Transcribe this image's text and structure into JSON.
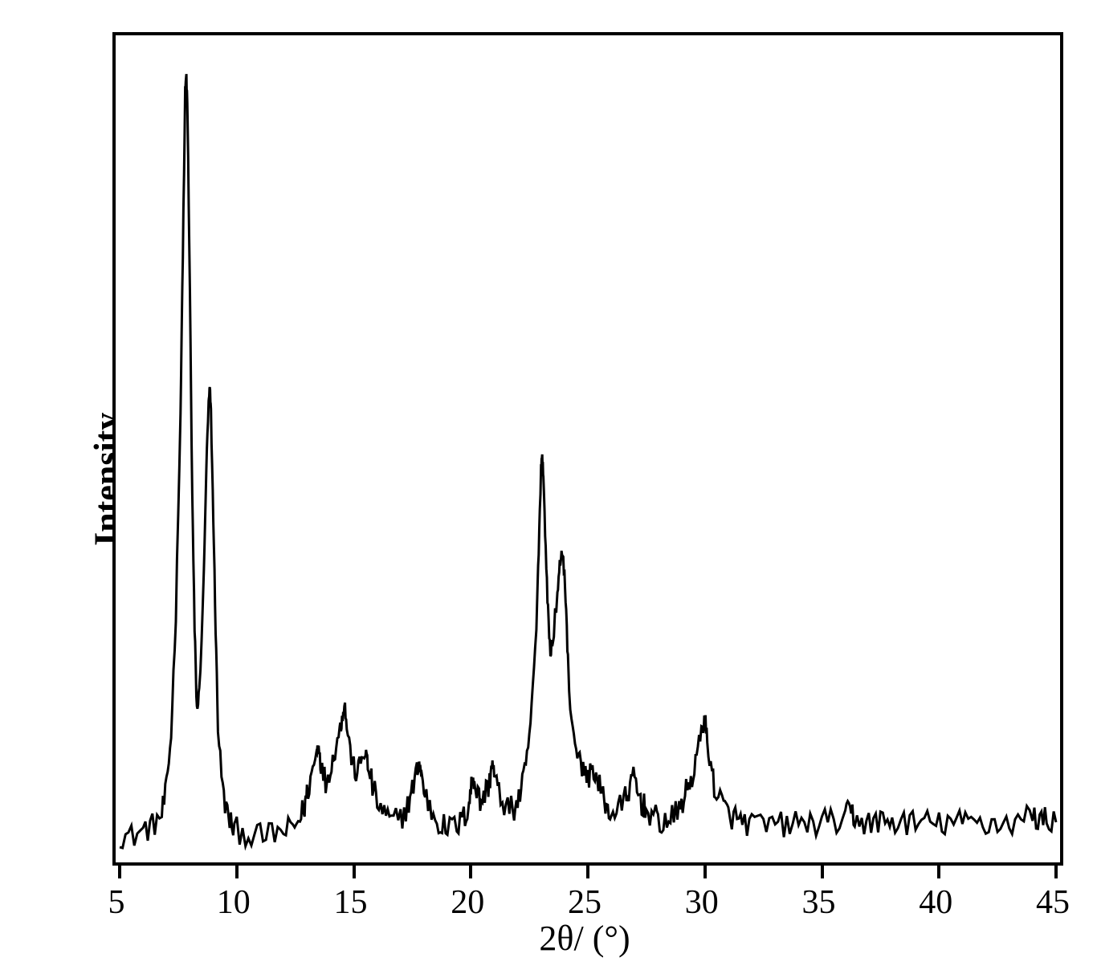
{
  "chart": {
    "type": "line",
    "ylabel": "Intensity",
    "xlabel_html": "2θ/ (°)",
    "xlim": [
      5,
      45
    ],
    "ylim": [
      0,
      100
    ],
    "xtick_labels": [
      "5",
      "10",
      "15",
      "20",
      "25",
      "30",
      "35",
      "40",
      "45"
    ],
    "xtick_positions": [
      5,
      10,
      15,
      20,
      25,
      30,
      35,
      40,
      45
    ],
    "line_color": "#000000",
    "line_width": 3,
    "border_color": "#000000",
    "border_width": 4,
    "background_color": "#ffffff",
    "text_color": "#000000",
    "ylabel_fontsize": 44,
    "xlabel_fontsize": 44,
    "tick_fontsize": 42,
    "data": [
      {
        "x": 5.0,
        "y": 2.5
      },
      {
        "x": 5.5,
        "y": 2.2
      },
      {
        "x": 6.0,
        "y": 3.0
      },
      {
        "x": 6.4,
        "y": 3.5
      },
      {
        "x": 6.8,
        "y": 5.0
      },
      {
        "x": 7.0,
        "y": 8.0
      },
      {
        "x": 7.2,
        "y": 15.0
      },
      {
        "x": 7.4,
        "y": 30.0
      },
      {
        "x": 7.6,
        "y": 55.0
      },
      {
        "x": 7.7,
        "y": 75.0
      },
      {
        "x": 7.8,
        "y": 95.0
      },
      {
        "x": 7.85,
        "y": 97.0
      },
      {
        "x": 7.9,
        "y": 92.0
      },
      {
        "x": 8.0,
        "y": 70.0
      },
      {
        "x": 8.1,
        "y": 45.0
      },
      {
        "x": 8.2,
        "y": 28.0
      },
      {
        "x": 8.3,
        "y": 18.0
      },
      {
        "x": 8.4,
        "y": 20.0
      },
      {
        "x": 8.6,
        "y": 35.0
      },
      {
        "x": 8.7,
        "y": 48.0
      },
      {
        "x": 8.8,
        "y": 56.0
      },
      {
        "x": 8.85,
        "y": 58.0
      },
      {
        "x": 8.9,
        "y": 55.0
      },
      {
        "x": 9.0,
        "y": 42.0
      },
      {
        "x": 9.1,
        "y": 28.0
      },
      {
        "x": 9.2,
        "y": 16.0
      },
      {
        "x": 9.4,
        "y": 8.0
      },
      {
        "x": 9.6,
        "y": 5.0
      },
      {
        "x": 9.8,
        "y": 3.5
      },
      {
        "x": 10.0,
        "y": 3.0
      },
      {
        "x": 10.5,
        "y": 2.5
      },
      {
        "x": 11.0,
        "y": 2.2
      },
      {
        "x": 11.5,
        "y": 2.5
      },
      {
        "x": 12.0,
        "y": 2.8
      },
      {
        "x": 12.4,
        "y": 3.2
      },
      {
        "x": 12.7,
        "y": 4.5
      },
      {
        "x": 12.9,
        "y": 6.0
      },
      {
        "x": 13.0,
        "y": 7.5
      },
      {
        "x": 13.2,
        "y": 10.0
      },
      {
        "x": 13.4,
        "y": 12.5
      },
      {
        "x": 13.5,
        "y": 14.0
      },
      {
        "x": 13.6,
        "y": 11.0
      },
      {
        "x": 13.8,
        "y": 9.0
      },
      {
        "x": 14.0,
        "y": 10.5
      },
      {
        "x": 14.2,
        "y": 13.0
      },
      {
        "x": 14.4,
        "y": 15.5
      },
      {
        "x": 14.5,
        "y": 17.0
      },
      {
        "x": 14.6,
        "y": 19.0
      },
      {
        "x": 14.7,
        "y": 16.0
      },
      {
        "x": 14.9,
        "y": 12.0
      },
      {
        "x": 15.1,
        "y": 10.0
      },
      {
        "x": 15.3,
        "y": 11.5
      },
      {
        "x": 15.5,
        "y": 13.0
      },
      {
        "x": 15.6,
        "y": 11.0
      },
      {
        "x": 15.8,
        "y": 8.5
      },
      {
        "x": 16.0,
        "y": 6.5
      },
      {
        "x": 16.3,
        "y": 5.0
      },
      {
        "x": 16.6,
        "y": 4.0
      },
      {
        "x": 17.0,
        "y": 4.5
      },
      {
        "x": 17.3,
        "y": 6.0
      },
      {
        "x": 17.5,
        "y": 8.0
      },
      {
        "x": 17.7,
        "y": 10.5
      },
      {
        "x": 17.8,
        "y": 11.5
      },
      {
        "x": 17.9,
        "y": 9.5
      },
      {
        "x": 18.1,
        "y": 7.0
      },
      {
        "x": 18.4,
        "y": 5.0
      },
      {
        "x": 18.7,
        "y": 3.8
      },
      {
        "x": 19.0,
        "y": 3.2
      },
      {
        "x": 19.4,
        "y": 3.5
      },
      {
        "x": 19.7,
        "y": 4.5
      },
      {
        "x": 19.9,
        "y": 6.0
      },
      {
        "x": 20.0,
        "y": 8.0
      },
      {
        "x": 20.1,
        "y": 10.0
      },
      {
        "x": 20.2,
        "y": 8.5
      },
      {
        "x": 20.4,
        "y": 6.5
      },
      {
        "x": 20.6,
        "y": 7.5
      },
      {
        "x": 20.8,
        "y": 9.0
      },
      {
        "x": 20.9,
        "y": 11.5
      },
      {
        "x": 21.0,
        "y": 10.0
      },
      {
        "x": 21.2,
        "y": 7.5
      },
      {
        "x": 21.5,
        "y": 6.0
      },
      {
        "x": 21.8,
        "y": 5.5
      },
      {
        "x": 22.0,
        "y": 6.5
      },
      {
        "x": 22.2,
        "y": 8.5
      },
      {
        "x": 22.4,
        "y": 12.0
      },
      {
        "x": 22.6,
        "y": 18.0
      },
      {
        "x": 22.8,
        "y": 28.0
      },
      {
        "x": 22.9,
        "y": 38.0
      },
      {
        "x": 23.0,
        "y": 48.0
      },
      {
        "x": 23.05,
        "y": 50.0
      },
      {
        "x": 23.1,
        "y": 47.0
      },
      {
        "x": 23.2,
        "y": 38.0
      },
      {
        "x": 23.3,
        "y": 30.0
      },
      {
        "x": 23.4,
        "y": 25.0
      },
      {
        "x": 23.5,
        "y": 27.0
      },
      {
        "x": 23.7,
        "y": 32.0
      },
      {
        "x": 23.8,
        "y": 36.0
      },
      {
        "x": 23.9,
        "y": 38.0
      },
      {
        "x": 24.0,
        "y": 35.0
      },
      {
        "x": 24.1,
        "y": 28.0
      },
      {
        "x": 24.2,
        "y": 20.0
      },
      {
        "x": 24.4,
        "y": 15.0
      },
      {
        "x": 24.6,
        "y": 12.0
      },
      {
        "x": 24.8,
        "y": 10.5
      },
      {
        "x": 25.0,
        "y": 9.5
      },
      {
        "x": 25.2,
        "y": 11.0
      },
      {
        "x": 25.4,
        "y": 9.0
      },
      {
        "x": 25.6,
        "y": 7.5
      },
      {
        "x": 25.8,
        "y": 6.0
      },
      {
        "x": 26.0,
        "y": 5.0
      },
      {
        "x": 26.3,
        "y": 5.5
      },
      {
        "x": 26.6,
        "y": 7.0
      },
      {
        "x": 26.8,
        "y": 8.5
      },
      {
        "x": 27.0,
        "y": 9.5
      },
      {
        "x": 27.1,
        "y": 8.0
      },
      {
        "x": 27.3,
        "y": 6.5
      },
      {
        "x": 27.5,
        "y": 5.5
      },
      {
        "x": 27.8,
        "y": 4.8
      },
      {
        "x": 28.0,
        "y": 4.2
      },
      {
        "x": 28.3,
        "y": 4.0
      },
      {
        "x": 28.6,
        "y": 4.5
      },
      {
        "x": 28.9,
        "y": 5.5
      },
      {
        "x": 29.1,
        "y": 7.0
      },
      {
        "x": 29.3,
        "y": 8.5
      },
      {
        "x": 29.5,
        "y": 10.0
      },
      {
        "x": 29.7,
        "y": 13.0
      },
      {
        "x": 29.9,
        "y": 16.0
      },
      {
        "x": 30.0,
        "y": 17.0
      },
      {
        "x": 30.1,
        "y": 14.0
      },
      {
        "x": 30.3,
        "y": 10.0
      },
      {
        "x": 30.5,
        "y": 7.5
      },
      {
        "x": 30.8,
        "y": 6.0
      },
      {
        "x": 31.0,
        "y": 5.0
      },
      {
        "x": 31.3,
        "y": 4.5
      },
      {
        "x": 31.6,
        "y": 4.0
      },
      {
        "x": 32.0,
        "y": 3.8
      },
      {
        "x": 32.5,
        "y": 3.5
      },
      {
        "x": 33.0,
        "y": 3.8
      },
      {
        "x": 33.5,
        "y": 3.6
      },
      {
        "x": 34.0,
        "y": 4.0
      },
      {
        "x": 34.5,
        "y": 3.7
      },
      {
        "x": 35.0,
        "y": 4.2
      },
      {
        "x": 35.5,
        "y": 3.9
      },
      {
        "x": 36.0,
        "y": 4.5
      },
      {
        "x": 36.2,
        "y": 5.5
      },
      {
        "x": 36.4,
        "y": 4.5
      },
      {
        "x": 36.8,
        "y": 4.0
      },
      {
        "x": 37.2,
        "y": 3.8
      },
      {
        "x": 37.6,
        "y": 4.2
      },
      {
        "x": 38.0,
        "y": 3.9
      },
      {
        "x": 38.5,
        "y": 4.1
      },
      {
        "x": 39.0,
        "y": 3.8
      },
      {
        "x": 39.5,
        "y": 4.0
      },
      {
        "x": 40.0,
        "y": 3.7
      },
      {
        "x": 40.5,
        "y": 4.1
      },
      {
        "x": 41.0,
        "y": 3.9
      },
      {
        "x": 41.5,
        "y": 4.2
      },
      {
        "x": 42.0,
        "y": 3.8
      },
      {
        "x": 42.5,
        "y": 4.0
      },
      {
        "x": 43.0,
        "y": 3.9
      },
      {
        "x": 43.5,
        "y": 4.3
      },
      {
        "x": 44.0,
        "y": 5.0
      },
      {
        "x": 44.3,
        "y": 4.2
      },
      {
        "x": 44.6,
        "y": 4.5
      },
      {
        "x": 45.0,
        "y": 4.0
      }
    ],
    "noise_amplitude": 1.2,
    "noise_density": 4
  }
}
